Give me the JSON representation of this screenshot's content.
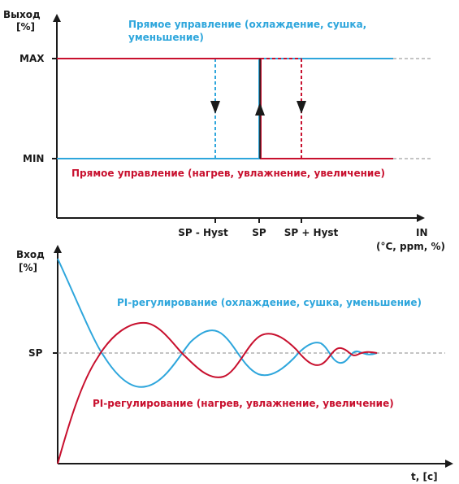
{
  "top_diagram": {
    "y_label_line1": "Выход",
    "y_label_line2": "[%]",
    "max_label": "MAX",
    "min_label": "MIN",
    "blue_caption_line1": "Прямое управление (охлаждение, сушка,",
    "blue_caption_line2": "уменьшение)",
    "red_caption": "Прямое управление (нагрев, увлажнение, увеличение)",
    "x_ticks": [
      "SP - Hyst",
      "SP",
      "SP + Hyst"
    ],
    "x_label_line1": "IN",
    "x_label_line2": "(°C, ppm, %)"
  },
  "bottom_diagram": {
    "y_label_line1": "Вход",
    "y_label_line2": "[%]",
    "sp_label": "SP",
    "blue_caption": "PI-регулирование (охлаждение, сушка, уменьшение)",
    "red_caption": "PI-регулирование (нагрев, увлажнение, увеличение)",
    "x_label": "t, [c]"
  },
  "colors": {
    "blue": "#2ea6dc",
    "red": "#c8102e",
    "axis": "#1a1a1a",
    "dashed": "#8a8a8a"
  }
}
